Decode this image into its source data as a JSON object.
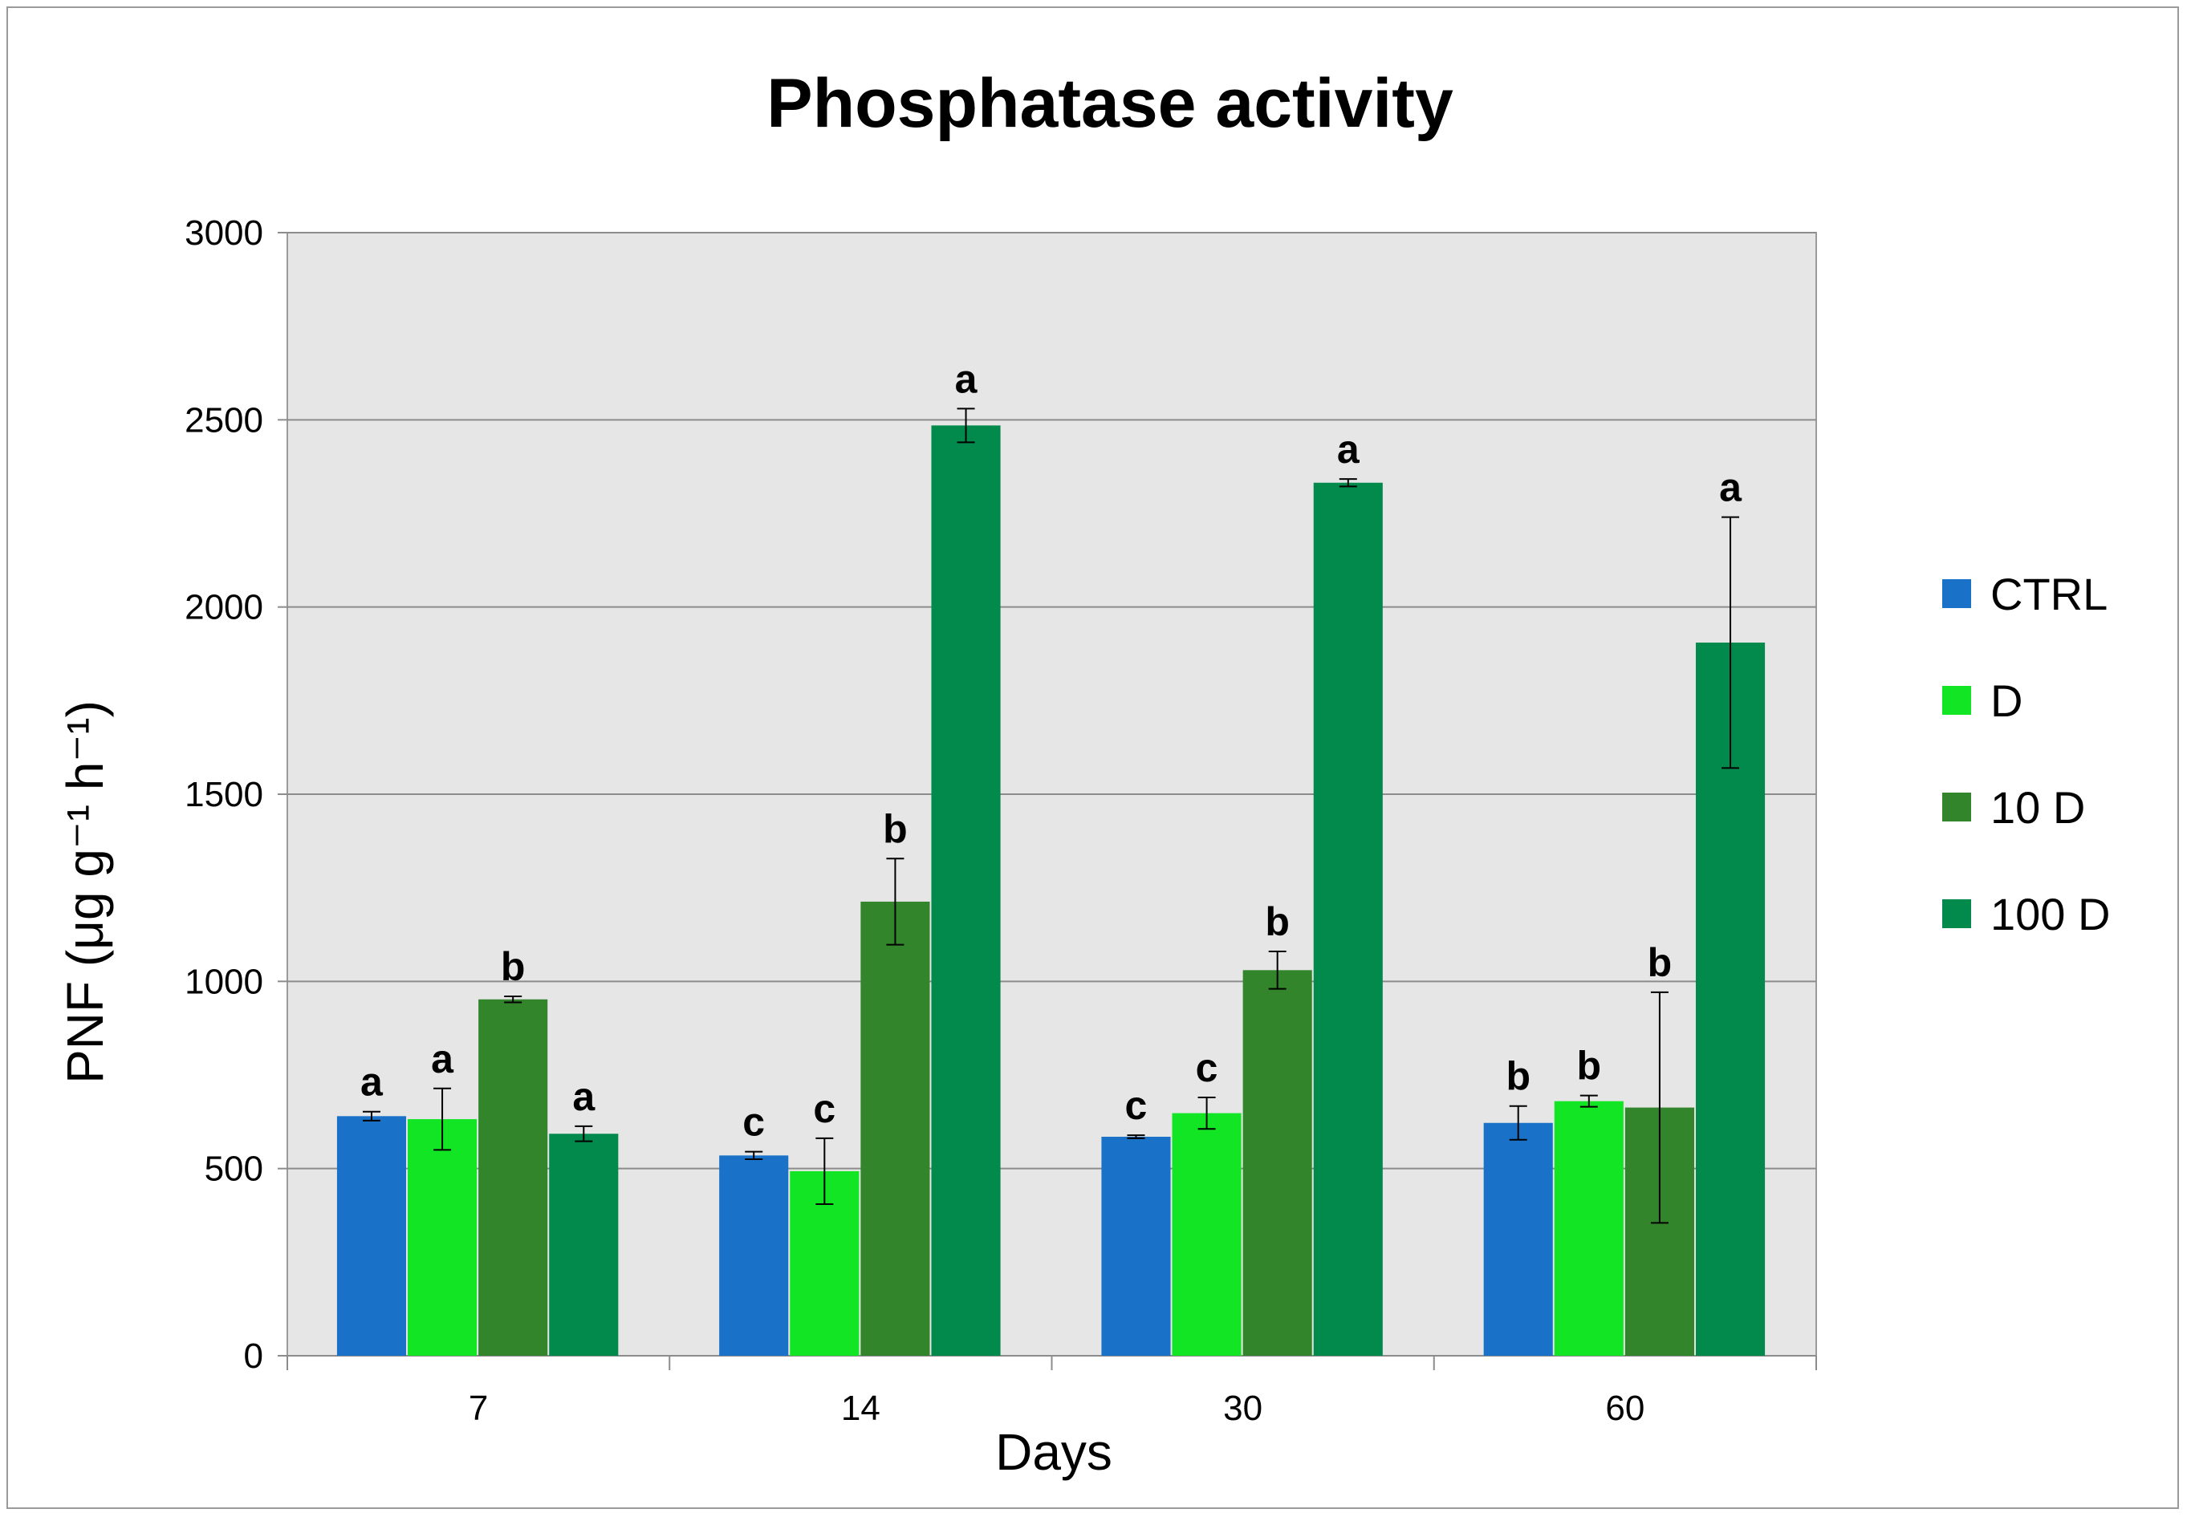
{
  "chart_data": {
    "type": "bar",
    "title": "Phosphatase activity",
    "xlabel": "Days",
    "ylabel": "PNF (μg g⁻¹ h⁻¹)",
    "ylim": [
      0,
      3000
    ],
    "yticks": [
      0,
      500,
      1000,
      1500,
      2000,
      2500,
      3000
    ],
    "categories": [
      "7",
      "14",
      "30",
      "60"
    ],
    "grid": true,
    "legend_position": "right",
    "series": [
      {
        "name": "CTRL",
        "color": "#1a72c8",
        "values": [
          640,
          535,
          585,
          622
        ],
        "errors": [
          12,
          10,
          4,
          45
        ],
        "labels": [
          "a",
          "c",
          "c",
          "b"
        ]
      },
      {
        "name": "D",
        "color": "#11e524",
        "values": [
          632,
          493,
          648,
          680
        ],
        "errors": [
          82,
          88,
          42,
          15
        ],
        "labels": [
          "a",
          "c",
          "c",
          "b"
        ]
      },
      {
        "name": "10 D",
        "color": "#33852b",
        "values": [
          952,
          1213,
          1030,
          663
        ],
        "errors": [
          8,
          115,
          50,
          308
        ],
        "labels": [
          "b",
          "b",
          "b",
          "b"
        ]
      },
      {
        "name": "100 D",
        "color": "#028a4d",
        "values": [
          593,
          2485,
          2332,
          1905
        ],
        "errors": [
          20,
          45,
          10,
          335
        ],
        "labels": [
          "a",
          "a",
          "a",
          "a"
        ]
      }
    ]
  }
}
